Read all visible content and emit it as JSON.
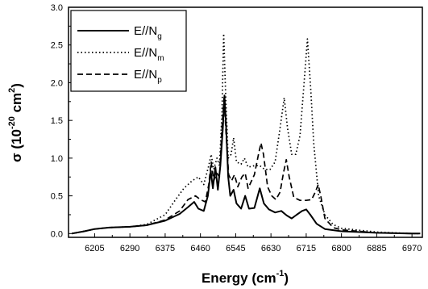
{
  "chart_data": {
    "type": "line",
    "xlabel": {
      "main": "Energy (cm",
      "sup": "-1",
      "tail": ")"
    },
    "ylabel": {
      "pre": "σ (10",
      "sup1": "-20",
      "mid": " cm",
      "sup2": "2",
      "tail": ")"
    },
    "xlim": [
      6142,
      6995
    ],
    "ylim": [
      -0.05,
      3.0
    ],
    "x_ticks": [
      6205,
      6290,
      6375,
      6460,
      6545,
      6630,
      6715,
      6800,
      6885,
      6970
    ],
    "x_tick_labels": [
      "6205",
      "6290",
      "6375",
      "6460",
      "6545",
      "6630",
      "6715",
      "6800",
      "6885",
      "6970"
    ],
    "y_ticks": [
      0.0,
      0.5,
      1.0,
      1.5,
      2.0,
      2.5,
      3.0
    ],
    "y_tick_labels": [
      "0.0",
      "0.5",
      "1.0",
      "1.5",
      "2.0",
      "2.5",
      "3.0"
    ],
    "legend_position": "top-left",
    "series": [
      {
        "name": "E//N",
        "sub": "g",
        "line_style": "solid",
        "color": "#000000",
        "points": [
          [
            6150,
            0.0
          ],
          [
            6180,
            0.03
          ],
          [
            6205,
            0.06
          ],
          [
            6240,
            0.08
          ],
          [
            6290,
            0.09
          ],
          [
            6330,
            0.11
          ],
          [
            6375,
            0.17
          ],
          [
            6410,
            0.26
          ],
          [
            6430,
            0.35
          ],
          [
            6445,
            0.42
          ],
          [
            6455,
            0.33
          ],
          [
            6468,
            0.3
          ],
          [
            6478,
            0.5
          ],
          [
            6485,
            0.83
          ],
          [
            6490,
            0.6
          ],
          [
            6496,
            0.88
          ],
          [
            6502,
            0.58
          ],
          [
            6508,
            0.9
          ],
          [
            6514,
            1.4
          ],
          [
            6518,
            1.83
          ],
          [
            6522,
            1.4
          ],
          [
            6527,
            0.75
          ],
          [
            6532,
            0.5
          ],
          [
            6540,
            0.58
          ],
          [
            6547,
            0.4
          ],
          [
            6558,
            0.33
          ],
          [
            6568,
            0.5
          ],
          [
            6577,
            0.33
          ],
          [
            6590,
            0.34
          ],
          [
            6603,
            0.6
          ],
          [
            6613,
            0.4
          ],
          [
            6625,
            0.32
          ],
          [
            6640,
            0.28
          ],
          [
            6655,
            0.3
          ],
          [
            6668,
            0.24
          ],
          [
            6680,
            0.2
          ],
          [
            6692,
            0.25
          ],
          [
            6705,
            0.3
          ],
          [
            6715,
            0.32
          ],
          [
            6725,
            0.25
          ],
          [
            6740,
            0.13
          ],
          [
            6760,
            0.06
          ],
          [
            6800,
            0.03
          ],
          [
            6885,
            0.01
          ],
          [
            6970,
            0.0
          ],
          [
            6990,
            0.0
          ]
        ]
      },
      {
        "name": "E//N",
        "sub": "m",
        "line_style": "dotted",
        "color": "#000000",
        "points": [
          [
            6150,
            0.0
          ],
          [
            6180,
            0.03
          ],
          [
            6205,
            0.06
          ],
          [
            6240,
            0.08
          ],
          [
            6290,
            0.09
          ],
          [
            6330,
            0.12
          ],
          [
            6375,
            0.25
          ],
          [
            6400,
            0.45
          ],
          [
            6420,
            0.6
          ],
          [
            6440,
            0.7
          ],
          [
            6455,
            0.75
          ],
          [
            6468,
            0.65
          ],
          [
            6480,
            0.9
          ],
          [
            6486,
            1.05
          ],
          [
            6492,
            0.85
          ],
          [
            6500,
            1.0
          ],
          [
            6506,
            0.9
          ],
          [
            6512,
            1.6
          ],
          [
            6516,
            2.65
          ],
          [
            6521,
            1.8
          ],
          [
            6527,
            1.0
          ],
          [
            6534,
            1.05
          ],
          [
            6540,
            1.27
          ],
          [
            6547,
            0.95
          ],
          [
            6558,
            0.92
          ],
          [
            6566,
            1.0
          ],
          [
            6575,
            0.88
          ],
          [
            6590,
            0.9
          ],
          [
            6603,
            0.9
          ],
          [
            6615,
            0.85
          ],
          [
            6628,
            0.85
          ],
          [
            6640,
            0.95
          ],
          [
            6652,
            1.4
          ],
          [
            6662,
            1.8
          ],
          [
            6670,
            1.4
          ],
          [
            6680,
            1.05
          ],
          [
            6690,
            1.05
          ],
          [
            6700,
            1.3
          ],
          [
            6710,
            2.0
          ],
          [
            6718,
            2.58
          ],
          [
            6726,
            1.9
          ],
          [
            6733,
            1.2
          ],
          [
            6745,
            0.5
          ],
          [
            6760,
            0.25
          ],
          [
            6780,
            0.12
          ],
          [
            6800,
            0.07
          ],
          [
            6885,
            0.02
          ],
          [
            6970,
            0.0
          ],
          [
            6990,
            0.0
          ]
        ]
      },
      {
        "name": "E//N",
        "sub": "p",
        "line_style": "dashed",
        "color": "#000000",
        "points": [
          [
            6150,
            0.0
          ],
          [
            6180,
            0.03
          ],
          [
            6205,
            0.06
          ],
          [
            6240,
            0.08
          ],
          [
            6290,
            0.09
          ],
          [
            6330,
            0.11
          ],
          [
            6375,
            0.18
          ],
          [
            6410,
            0.3
          ],
          [
            6430,
            0.45
          ],
          [
            6448,
            0.5
          ],
          [
            6460,
            0.45
          ],
          [
            6472,
            0.42
          ],
          [
            6480,
            0.65
          ],
          [
            6486,
            0.95
          ],
          [
            6492,
            0.7
          ],
          [
            6500,
            0.8
          ],
          [
            6506,
            0.75
          ],
          [
            6512,
            1.4
          ],
          [
            6517,
            1.8
          ],
          [
            6522,
            1.3
          ],
          [
            6528,
            0.78
          ],
          [
            6535,
            0.7
          ],
          [
            6542,
            0.78
          ],
          [
            6550,
            0.62
          ],
          [
            6560,
            0.75
          ],
          [
            6568,
            0.8
          ],
          [
            6575,
            0.6
          ],
          [
            6590,
            0.78
          ],
          [
            6600,
            1.05
          ],
          [
            6606,
            1.2
          ],
          [
            6612,
            1.05
          ],
          [
            6622,
            0.62
          ],
          [
            6632,
            0.5
          ],
          [
            6642,
            0.45
          ],
          [
            6652,
            0.55
          ],
          [
            6660,
            0.8
          ],
          [
            6667,
            0.98
          ],
          [
            6674,
            0.75
          ],
          [
            6685,
            0.48
          ],
          [
            6700,
            0.44
          ],
          [
            6715,
            0.44
          ],
          [
            6728,
            0.45
          ],
          [
            6737,
            0.55
          ],
          [
            6744,
            0.65
          ],
          [
            6750,
            0.5
          ],
          [
            6760,
            0.2
          ],
          [
            6780,
            0.08
          ],
          [
            6800,
            0.05
          ],
          [
            6885,
            0.01
          ],
          [
            6970,
            0.0
          ],
          [
            6990,
            0.0
          ]
        ]
      }
    ]
  }
}
